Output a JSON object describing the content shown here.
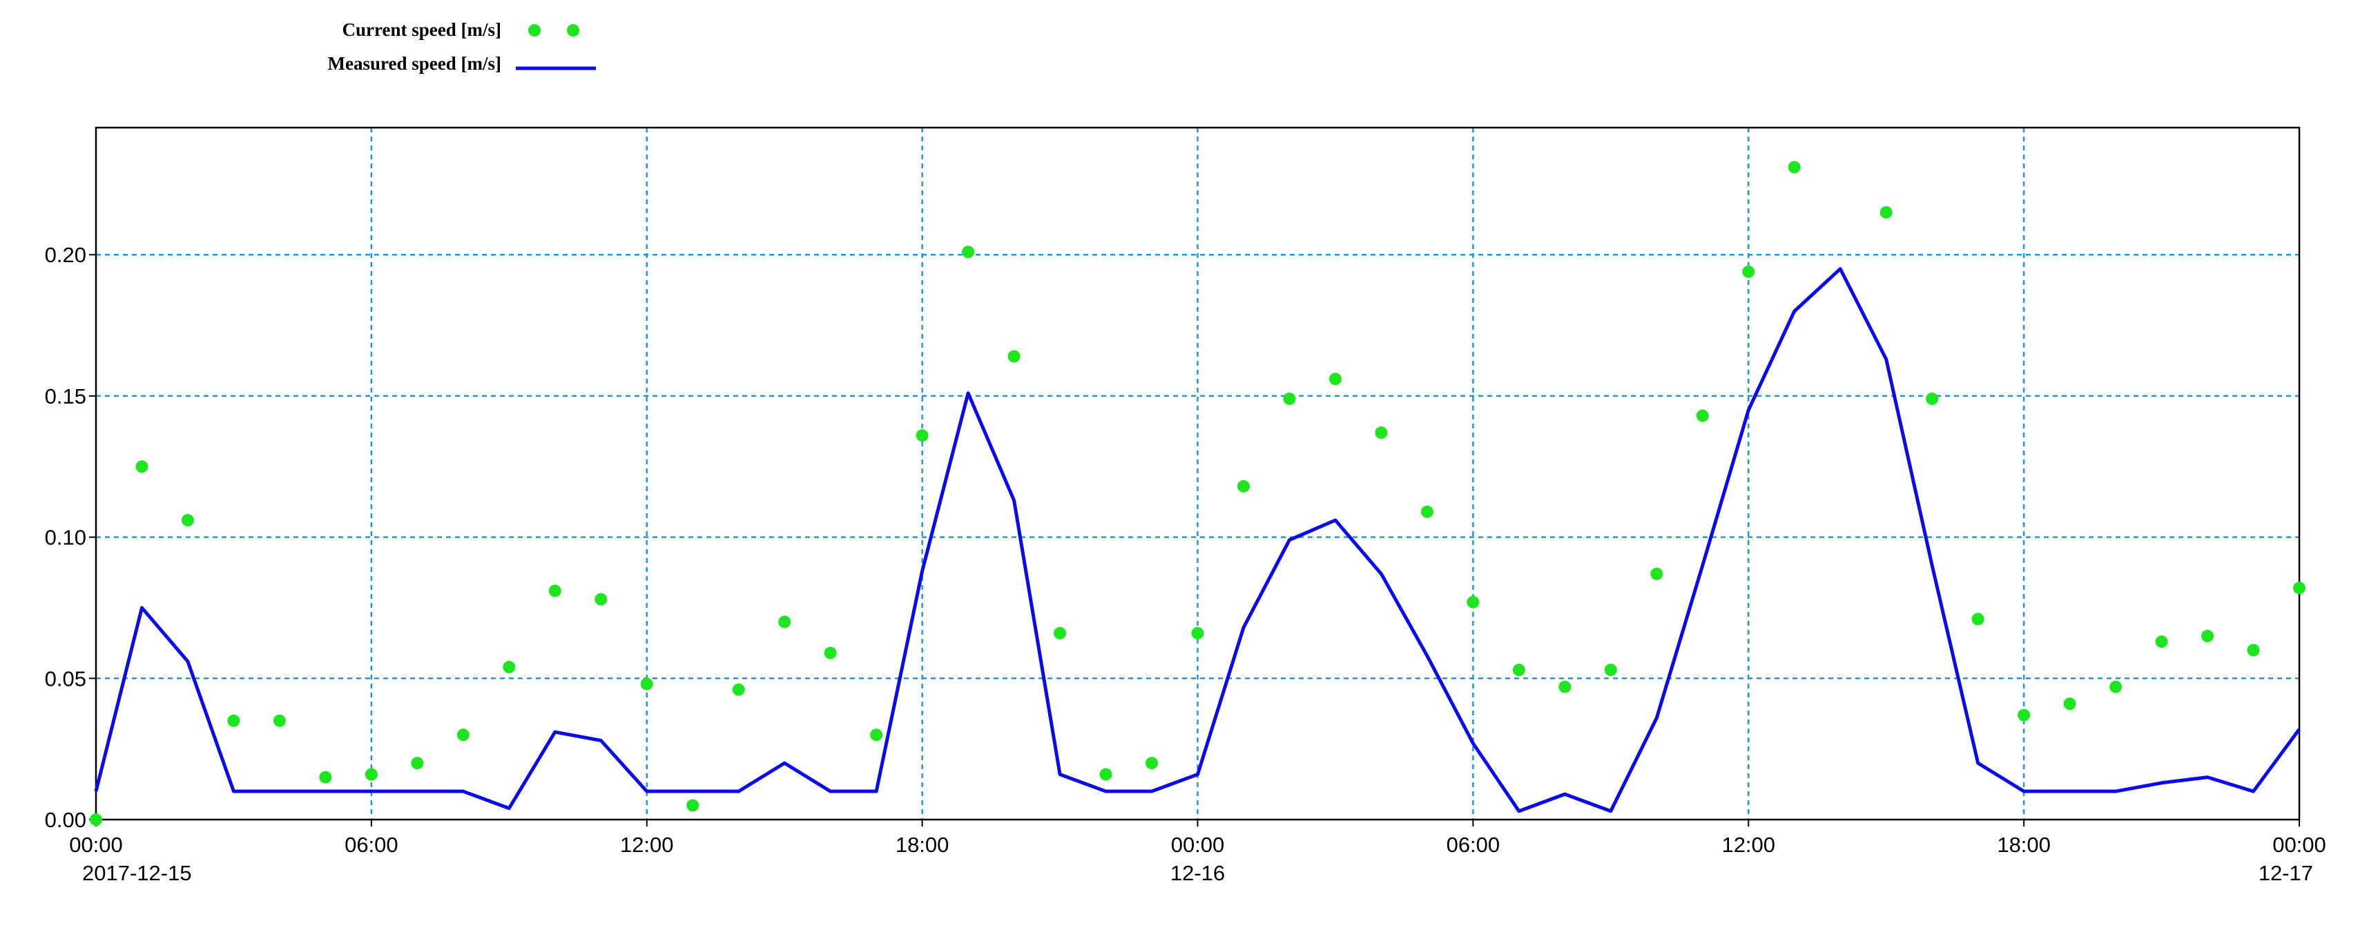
{
  "chart_data": {
    "type": "line-scatter",
    "x": [
      "2017-12-15 00:00",
      "2017-12-15 01:00",
      "2017-12-15 02:00",
      "2017-12-15 03:00",
      "2017-12-15 04:00",
      "2017-12-15 05:00",
      "2017-12-15 06:00",
      "2017-12-15 07:00",
      "2017-12-15 08:00",
      "2017-12-15 09:00",
      "2017-12-15 10:00",
      "2017-12-15 11:00",
      "2017-12-15 12:00",
      "2017-12-15 13:00",
      "2017-12-15 14:00",
      "2017-12-15 15:00",
      "2017-12-15 16:00",
      "2017-12-15 17:00",
      "2017-12-15 18:00",
      "2017-12-15 19:00",
      "2017-12-15 20:00",
      "2017-12-15 21:00",
      "2017-12-15 22:00",
      "2017-12-15 23:00",
      "2017-12-16 00:00",
      "2017-12-16 01:00",
      "2017-12-16 02:00",
      "2017-12-16 03:00",
      "2017-12-16 04:00",
      "2017-12-16 05:00",
      "2017-12-16 06:00",
      "2017-12-16 07:00",
      "2017-12-16 08:00",
      "2017-12-16 09:00",
      "2017-12-16 10:00",
      "2017-12-16 11:00",
      "2017-12-16 12:00",
      "2017-12-16 13:00",
      "2017-12-16 14:00",
      "2017-12-16 15:00",
      "2017-12-16 16:00",
      "2017-12-16 17:00",
      "2017-12-16 18:00",
      "2017-12-16 19:00",
      "2017-12-16 20:00",
      "2017-12-16 21:00",
      "2017-12-16 22:00",
      "2017-12-16 23:00",
      "2017-12-17 00:00"
    ],
    "series": [
      {
        "name": "Current speed [m/s]",
        "style": "scatter",
        "color": "#1ee61e",
        "values": [
          0.0,
          0.125,
          0.106,
          0.035,
          0.035,
          0.015,
          0.016,
          0.02,
          0.03,
          0.054,
          0.081,
          0.078,
          0.048,
          0.005,
          0.046,
          0.07,
          0.059,
          0.03,
          0.136,
          0.201,
          0.164,
          0.066,
          0.016,
          0.02,
          0.066,
          0.118,
          0.149,
          0.156,
          0.137,
          0.109,
          0.077,
          0.053,
          0.047,
          0.053,
          0.087,
          0.143,
          0.194,
          0.231,
          null,
          0.215,
          0.149,
          0.071,
          0.037,
          0.041,
          0.047,
          0.063,
          0.065,
          0.06,
          0.082
        ]
      },
      {
        "name": "Measured speed [m/s]",
        "style": "line",
        "color": "#0a0aee",
        "values": [
          0.01,
          0.075,
          0.056,
          0.01,
          0.01,
          0.01,
          0.01,
          0.01,
          0.01,
          0.004,
          0.031,
          0.028,
          0.01,
          0.01,
          0.01,
          0.02,
          0.01,
          0.01,
          0.088,
          0.151,
          0.113,
          0.016,
          0.01,
          0.01,
          0.016,
          0.068,
          0.099,
          0.106,
          0.087,
          0.058,
          0.027,
          0.003,
          0.009,
          0.003,
          0.036,
          0.09,
          0.145,
          0.18,
          0.195,
          0.163,
          0.09,
          0.02,
          0.01,
          0.01,
          0.01,
          0.013,
          0.015,
          0.01,
          0.032
        ]
      }
    ],
    "xlim": [
      "2017-12-15 00:00",
      "2017-12-17 00:00"
    ],
    "xticks": [
      {
        "value": "2017-12-15 00:00",
        "label": [
          "00:00",
          "2017-12-15"
        ]
      },
      {
        "value": "2017-12-15 06:00",
        "label": [
          "06:00"
        ]
      },
      {
        "value": "2017-12-15 12:00",
        "label": [
          "12:00"
        ]
      },
      {
        "value": "2017-12-15 18:00",
        "label": [
          "18:00"
        ]
      },
      {
        "value": "2017-12-16 00:00",
        "label": [
          "00:00",
          "12-16"
        ]
      },
      {
        "value": "2017-12-16 06:00",
        "label": [
          "06:00"
        ]
      },
      {
        "value": "2017-12-16 12:00",
        "label": [
          "12:00"
        ]
      },
      {
        "value": "2017-12-16 18:00",
        "label": [
          "18:00"
        ]
      },
      {
        "value": "2017-12-17 00:00",
        "label": [
          "00:00",
          "12-17"
        ]
      }
    ],
    "ylim": [
      0,
      0.245
    ],
    "yticks": [
      {
        "value": 0,
        "label": "0.00"
      },
      0.05,
      {
        "value": 0.1,
        "label": "0.10"
      },
      0.15,
      {
        "value": 0.2,
        "label": "0.20"
      }
    ],
    "grid": true,
    "grid_color": "#1e96e6"
  }
}
